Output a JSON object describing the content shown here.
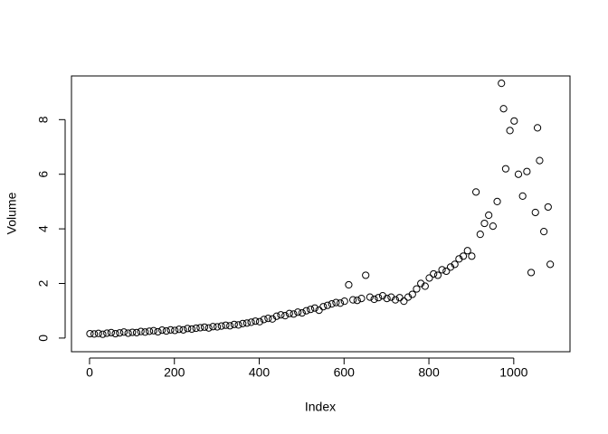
{
  "chart_data": {
    "type": "scatter",
    "xlabel": "Index",
    "ylabel": "Volume",
    "x": [
      1,
      11,
      21,
      31,
      41,
      51,
      61,
      71,
      81,
      91,
      101,
      111,
      121,
      131,
      141,
      151,
      161,
      171,
      181,
      191,
      201,
      211,
      221,
      231,
      241,
      251,
      261,
      271,
      281,
      291,
      301,
      311,
      321,
      331,
      341,
      351,
      361,
      371,
      381,
      391,
      401,
      411,
      421,
      431,
      441,
      451,
      461,
      471,
      481,
      491,
      501,
      511,
      521,
      531,
      541,
      551,
      561,
      571,
      581,
      591,
      601,
      611,
      621,
      631,
      641,
      651,
      661,
      671,
      681,
      691,
      701,
      711,
      721,
      731,
      741,
      751,
      761,
      771,
      781,
      791,
      801,
      811,
      821,
      831,
      841,
      851,
      861,
      871,
      881,
      891,
      901,
      911,
      921,
      931,
      941,
      951,
      961,
      971,
      976,
      981,
      991,
      1001,
      1011,
      1021,
      1031,
      1041,
      1051,
      1056,
      1061,
      1071,
      1081,
      1086
    ],
    "values": [
      0.16,
      0.15,
      0.17,
      0.14,
      0.18,
      0.2,
      0.16,
      0.19,
      0.22,
      0.18,
      0.21,
      0.2,
      0.24,
      0.22,
      0.25,
      0.27,
      0.23,
      0.29,
      0.26,
      0.3,
      0.28,
      0.32,
      0.3,
      0.35,
      0.33,
      0.36,
      0.38,
      0.4,
      0.37,
      0.42,
      0.41,
      0.44,
      0.47,
      0.45,
      0.5,
      0.48,
      0.53,
      0.55,
      0.58,
      0.62,
      0.6,
      0.68,
      0.72,
      0.7,
      0.8,
      0.85,
      0.82,
      0.9,
      0.88,
      0.95,
      0.92,
      1.0,
      1.05,
      1.1,
      1.02,
      1.15,
      1.2,
      1.25,
      1.3,
      1.28,
      1.35,
      1.95,
      1.4,
      1.38,
      1.45,
      2.3,
      1.5,
      1.42,
      1.48,
      1.55,
      1.45,
      1.5,
      1.4,
      1.48,
      1.35,
      1.5,
      1.6,
      1.8,
      2.0,
      1.9,
      2.2,
      2.35,
      2.3,
      2.5,
      2.45,
      2.6,
      2.7,
      2.9,
      3.0,
      3.2,
      3.0,
      5.35,
      3.8,
      4.2,
      4.5,
      4.1,
      5.0,
      9.33,
      8.4,
      6.2,
      7.6,
      7.95,
      6.0,
      5.2,
      6.1,
      2.4,
      4.6,
      7.7,
      6.5,
      3.9,
      4.8,
      2.7
    ],
    "color": "#000000",
    "xlim": [
      -42.6,
      1132.6
    ],
    "xticks": [
      0,
      200,
      400,
      600,
      800,
      1000
    ],
    "ylim": [
      -0.5,
      9.6
    ],
    "yticks": [
      0,
      2,
      4,
      6,
      8
    ]
  }
}
